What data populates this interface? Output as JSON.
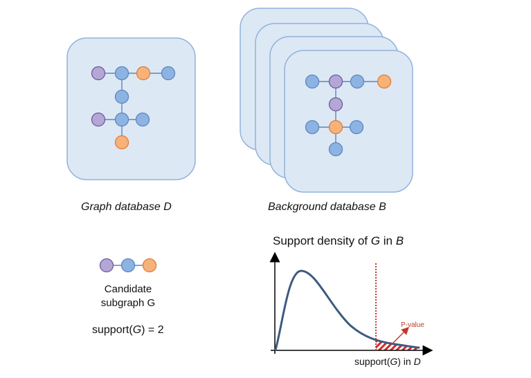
{
  "colors": {
    "panel_fill": "#dde8f5",
    "panel_stroke": "#8fb3da",
    "node_blue": "#8db3e2",
    "node_blue_stroke": "#5b86bf",
    "node_purple": "#b4a7d6",
    "node_purple_stroke": "#6f5a9e",
    "node_orange": "#f7b27a",
    "node_orange_stroke": "#e07b39",
    "edge": "#5b86bf",
    "curve": "#3d5a80",
    "cutoff_line": "#c0392b",
    "pvalue_hatch": "#d62828"
  },
  "graph_database": {
    "caption": "Graph database D"
  },
  "background_database": {
    "caption": "Background database B"
  },
  "candidate": {
    "caption_line1": "Candidate",
    "caption_line2": "subgraph G",
    "support_prefix": "support(",
    "support_var": "G",
    "support_suffix": ") = 2"
  },
  "density_chart": {
    "title_prefix": "Support density of ",
    "title_var1": "G",
    "title_mid": " in ",
    "title_var2": "B",
    "xlabel_prefix": "support(",
    "xlabel_var1": "G",
    "xlabel_mid": ") in ",
    "xlabel_var2": "D",
    "pvalue_label": "P-value"
  }
}
